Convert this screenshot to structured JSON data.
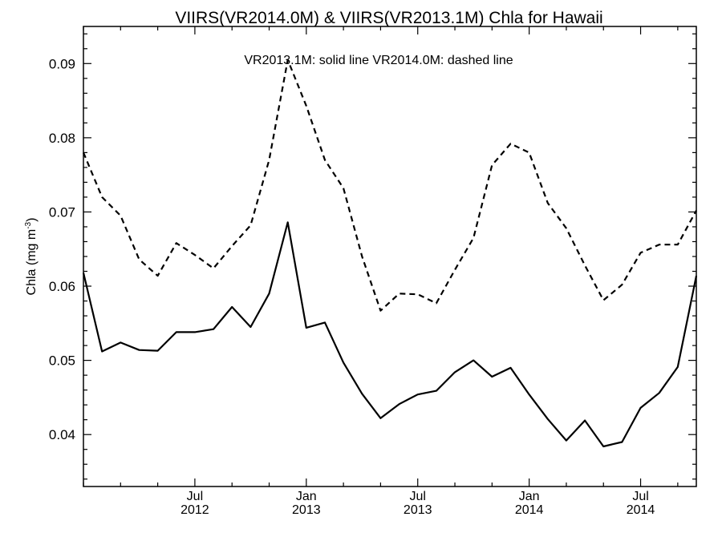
{
  "chart_data": {
    "type": "line",
    "title": "VIIRS(VR2014.0M) & VIIRS(VR2013.1M)  Chla for Hawaii",
    "annotation": "VR2013.1M: solid line   VR2014.0M: dashed line",
    "ylabel_main": "Chla (mg m",
    "ylabel_sup": "-3",
    "ylabel_close": ")",
    "ylim": [
      0.033,
      0.095
    ],
    "yticks": [
      0.04,
      0.05,
      0.06,
      0.07,
      0.08,
      0.09
    ],
    "ytick_labels": [
      "0.04",
      "0.05",
      "0.06",
      "0.07",
      "0.08",
      "0.09"
    ],
    "xlim": [
      "2012-01",
      "2014-10"
    ],
    "xticks": [
      {
        "month": "2012-07",
        "line1": "Jul",
        "line2": "2012"
      },
      {
        "month": "2013-01",
        "line1": "Jan",
        "line2": "2013"
      },
      {
        "month": "2013-07",
        "line1": "Jul",
        "line2": "2013"
      },
      {
        "month": "2014-01",
        "line1": "Jan",
        "line2": "2014"
      },
      {
        "month": "2014-07",
        "line1": "Jul",
        "line2": "2014"
      }
    ],
    "x": [
      "2012-01",
      "2012-02",
      "2012-03",
      "2012-04",
      "2012-05",
      "2012-06",
      "2012-07",
      "2012-08",
      "2012-09",
      "2012-10",
      "2012-11",
      "2012-12",
      "2013-01",
      "2013-02",
      "2013-03",
      "2013-04",
      "2013-05",
      "2013-06",
      "2013-07",
      "2013-08",
      "2013-09",
      "2013-10",
      "2013-11",
      "2013-12",
      "2014-01",
      "2014-02",
      "2014-03",
      "2014-04",
      "2014-05",
      "2014-06",
      "2014-07",
      "2014-08",
      "2014-09",
      "2014-10"
    ],
    "grid": false,
    "series": [
      {
        "name": "VR2013.1M",
        "style": "solid",
        "values": [
          0.0618,
          0.0512,
          0.0524,
          0.0514,
          0.0513,
          0.0538,
          0.0538,
          0.0542,
          0.0572,
          0.0545,
          0.059,
          0.0686,
          0.0544,
          0.0551,
          0.0497,
          0.0455,
          0.0422,
          0.0441,
          0.0454,
          0.0459,
          0.0484,
          0.05,
          0.0478,
          0.049,
          0.0454,
          0.0421,
          0.0392,
          0.0419,
          0.0384,
          0.039,
          0.0436,
          0.0456,
          0.0491,
          0.0614
        ]
      },
      {
        "name": "VR2014.0M",
        "style": "dashed",
        "values": [
          0.078,
          0.072,
          0.0695,
          0.0636,
          0.0614,
          0.0658,
          0.0642,
          0.0624,
          0.0654,
          0.0682,
          0.077,
          0.0905,
          0.0843,
          0.077,
          0.0732,
          0.064,
          0.0567,
          0.059,
          0.0589,
          0.0577,
          0.0622,
          0.0665,
          0.0763,
          0.0792,
          0.078,
          0.0712,
          0.0678,
          0.0628,
          0.0581,
          0.0602,
          0.0645,
          0.0656,
          0.0656,
          0.0702
        ]
      }
    ]
  }
}
